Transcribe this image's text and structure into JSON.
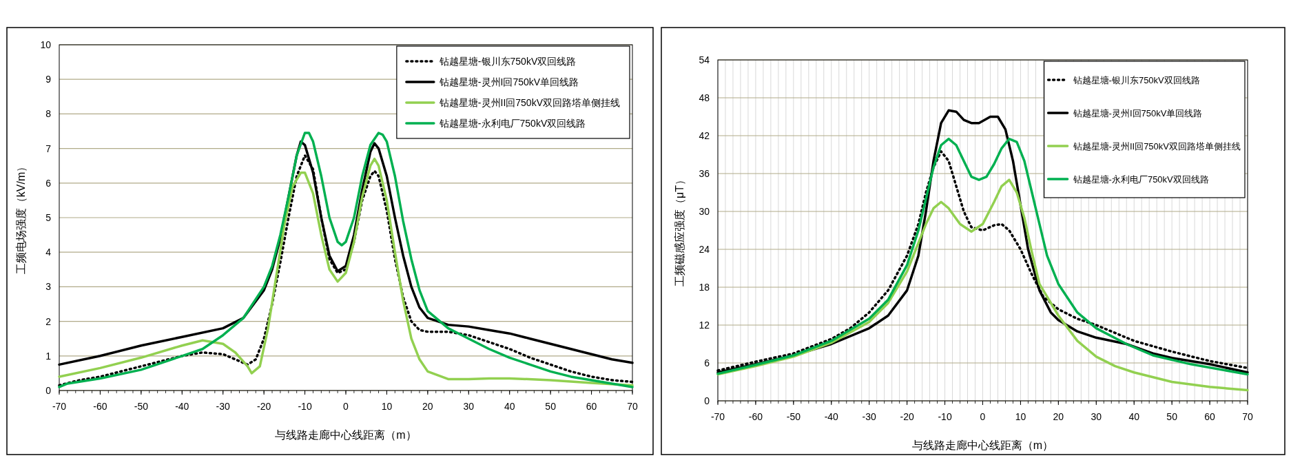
{
  "chart_data": [
    {
      "type": "line",
      "xlabel": "与线路走廊中心线距离（m）",
      "ylabel": "工频电场强度（kV/m）",
      "xlim": [
        -70,
        70
      ],
      "xticks": [
        -70,
        -60,
        -50,
        -40,
        -30,
        -20,
        -10,
        0,
        10,
        20,
        30,
        40,
        50,
        60,
        70
      ],
      "ylim": [
        0,
        10
      ],
      "yticks": [
        0,
        1,
        2,
        3,
        4,
        5,
        6,
        7,
        8,
        9,
        10
      ],
      "grid": "y",
      "legend": "top right",
      "series": [
        {
          "name": "钻越星塘-银川东750kV双回线路",
          "color": "#000000",
          "line_style": "dotted",
          "x": [
            -70,
            -65,
            -60,
            -55,
            -50,
            -45,
            -40,
            -35,
            -30,
            -27,
            -24,
            -22,
            -20,
            -18,
            -16,
            -14,
            -12,
            -10,
            -8,
            -6,
            -4,
            -2,
            0,
            2,
            4,
            6,
            7,
            8,
            10,
            12,
            14,
            16,
            18,
            20,
            25,
            30,
            35,
            40,
            45,
            50,
            55,
            60,
            65,
            70
          ],
          "values": [
            0.15,
            0.3,
            0.4,
            0.55,
            0.7,
            0.85,
            1.0,
            1.1,
            1.05,
            0.9,
            0.75,
            0.9,
            1.5,
            2.5,
            3.7,
            5.0,
            6.2,
            6.8,
            6.4,
            5.0,
            3.8,
            3.4,
            3.5,
            4.3,
            5.5,
            6.2,
            6.35,
            6.2,
            5.2,
            3.8,
            2.7,
            2.0,
            1.75,
            1.7,
            1.7,
            1.6,
            1.4,
            1.2,
            0.95,
            0.75,
            0.55,
            0.4,
            0.3,
            0.25
          ]
        },
        {
          "name": "钻越星塘-灵州I回750kV单回线路",
          "color": "#000000",
          "line_style": "solid",
          "x": [
            -70,
            -60,
            -50,
            -40,
            -30,
            -25,
            -20,
            -18,
            -16,
            -14,
            -12,
            -11,
            -10,
            -8,
            -6,
            -4,
            -2,
            0,
            2,
            4,
            6,
            7,
            8,
            10,
            12,
            14,
            16,
            18,
            20,
            25,
            30,
            35,
            40,
            45,
            50,
            55,
            60,
            65,
            70
          ],
          "values": [
            0.75,
            1.0,
            1.3,
            1.55,
            1.8,
            2.1,
            2.9,
            3.5,
            4.4,
            5.6,
            6.8,
            7.2,
            7.1,
            6.3,
            5.0,
            3.9,
            3.45,
            3.6,
            4.5,
            5.8,
            6.9,
            7.15,
            7.0,
            6.2,
            5.0,
            3.9,
            3.0,
            2.4,
            2.1,
            1.9,
            1.85,
            1.75,
            1.65,
            1.5,
            1.35,
            1.2,
            1.05,
            0.9,
            0.8
          ]
        },
        {
          "name": "钻越星塘-灵州II回750kV双回路塔单侧挂线",
          "color": "#92d050",
          "line_style": "solid",
          "x": [
            -70,
            -60,
            -50,
            -40,
            -35,
            -30,
            -27,
            -24,
            -23,
            -21,
            -19,
            -17,
            -15,
            -13,
            -11,
            -10,
            -8,
            -6,
            -4,
            -2,
            0,
            2,
            4,
            6,
            7,
            8,
            10,
            12,
            14,
            16,
            18,
            20,
            25,
            30,
            35,
            40,
            50,
            60,
            70
          ],
          "values": [
            0.4,
            0.65,
            0.95,
            1.3,
            1.45,
            1.35,
            1.1,
            0.7,
            0.5,
            0.7,
            1.8,
            3.3,
            4.8,
            5.9,
            6.3,
            6.3,
            5.7,
            4.5,
            3.5,
            3.15,
            3.4,
            4.3,
            5.6,
            6.5,
            6.7,
            6.5,
            5.5,
            4.0,
            2.6,
            1.5,
            0.9,
            0.55,
            0.33,
            0.33,
            0.35,
            0.35,
            0.3,
            0.22,
            0.15
          ]
        },
        {
          "name": "钻越星塘-永利电厂750kV双回线路",
          "color": "#00b050",
          "line_style": "solid",
          "x": [
            -70,
            -68,
            -60,
            -50,
            -40,
            -35,
            -30,
            -25,
            -20,
            -18,
            -16,
            -14,
            -12,
            -10,
            -9,
            -8,
            -6,
            -4,
            -2,
            -1,
            0,
            2,
            4,
            6,
            8,
            9,
            10,
            12,
            14,
            16,
            18,
            20,
            25,
            30,
            35,
            40,
            45,
            50,
            55,
            60,
            65,
            70
          ],
          "values": [
            0.1,
            0.2,
            0.35,
            0.6,
            1.0,
            1.2,
            1.6,
            2.1,
            3.0,
            3.6,
            4.5,
            5.6,
            6.8,
            7.45,
            7.45,
            7.2,
            6.2,
            5.0,
            4.3,
            4.2,
            4.3,
            5.0,
            6.2,
            7.1,
            7.45,
            7.4,
            7.2,
            6.2,
            4.9,
            3.8,
            2.9,
            2.3,
            1.8,
            1.5,
            1.2,
            0.95,
            0.75,
            0.55,
            0.4,
            0.3,
            0.2,
            0.1
          ]
        }
      ]
    },
    {
      "type": "line",
      "xlabel": "与线路走廊中心线距离（m）",
      "ylabel": "工频磁感应强度（μT）",
      "xlim": [
        -70,
        70
      ],
      "xticks": [
        -70,
        -60,
        -50,
        -40,
        -30,
        -20,
        -10,
        0,
        10,
        20,
        30,
        40,
        50,
        60,
        70
      ],
      "ylim": [
        0,
        54
      ],
      "yticks": [
        0,
        6,
        12,
        18,
        24,
        30,
        36,
        42,
        48,
        54
      ],
      "grid": true,
      "legend": "top right",
      "series": [
        {
          "name": "钻越星塘-银川东750kV双回线路",
          "color": "#000000",
          "line_style": "dotted",
          "x": [
            -70,
            -60,
            -50,
            -40,
            -35,
            -30,
            -25,
            -20,
            -17,
            -15,
            -13,
            -11,
            -9,
            -7,
            -5,
            -3,
            0,
            3,
            5,
            7,
            10,
            13,
            16,
            20,
            25,
            30,
            40,
            50,
            60,
            70
          ],
          "values": [
            4.8,
            6.2,
            7.5,
            9.8,
            11.5,
            14,
            17.5,
            23,
            28,
            33,
            37,
            39.5,
            38,
            34,
            30,
            27.5,
            27,
            27.8,
            28,
            27,
            24,
            20,
            16.5,
            14.5,
            13,
            12,
            9.5,
            7.8,
            6.3,
            5.2
          ]
        },
        {
          "name": "钻越星塘-灵州I回750kV单回线路",
          "color": "#000000",
          "line_style": "solid",
          "x": [
            -70,
            -60,
            -50,
            -40,
            -30,
            -25,
            -20,
            -17,
            -15,
            -13,
            -11,
            -9,
            -7,
            -5,
            -3,
            -1,
            2,
            4,
            6,
            8,
            10,
            12,
            15,
            18,
            20,
            25,
            30,
            38,
            45,
            50,
            60,
            70
          ],
          "values": [
            4.5,
            5.8,
            7.2,
            9,
            11.5,
            13.5,
            17.5,
            23,
            30,
            38,
            44,
            46,
            45.8,
            44.5,
            44,
            44,
            45,
            45,
            43,
            38,
            31,
            24,
            17.5,
            14,
            12.8,
            11,
            10,
            9,
            7.5,
            6.8,
            5.8,
            4.5
          ]
        },
        {
          "name": "钻越星塘-灵州II回750kV双回路塔单侧挂线",
          "color": "#92d050",
          "line_style": "solid",
          "x": [
            -70,
            -60,
            -50,
            -40,
            -30,
            -25,
            -20,
            -17,
            -15,
            -13,
            -11,
            -9,
            -6,
            -3,
            0,
            3,
            5,
            7,
            9,
            11,
            13,
            15,
            18,
            20,
            25,
            30,
            35,
            40,
            50,
            60,
            70
          ],
          "values": [
            4.2,
            5.5,
            7,
            9.2,
            12.5,
            15.5,
            20.5,
            25,
            28,
            30.5,
            31.5,
            30.5,
            28,
            26.8,
            28,
            31.5,
            34,
            35,
            33,
            29,
            23.5,
            18.5,
            15.5,
            13.5,
            9.5,
            7,
            5.5,
            4.5,
            3,
            2.2,
            1.7
          ]
        },
        {
          "name": "钻越星塘-永利电厂750kV双回线路",
          "color": "#00b050",
          "line_style": "solid",
          "x": [
            -70,
            -60,
            -50,
            -40,
            -30,
            -25,
            -20,
            -17,
            -15,
            -13,
            -11,
            -9,
            -7,
            -5,
            -3,
            -1,
            1,
            3,
            5,
            7,
            9,
            11,
            13,
            15,
            17,
            20,
            25,
            30,
            38,
            45,
            55,
            70
          ],
          "values": [
            4.3,
            5.7,
            7.2,
            9.5,
            13,
            16,
            21.5,
            27,
            32,
            37,
            40.5,
            41.5,
            40.5,
            38,
            35.5,
            35,
            35.5,
            37.5,
            40,
            41.5,
            41,
            38,
            33,
            28,
            23,
            18.5,
            14,
            11.5,
            9,
            7.2,
            5.8,
            4.2
          ]
        }
      ]
    }
  ]
}
